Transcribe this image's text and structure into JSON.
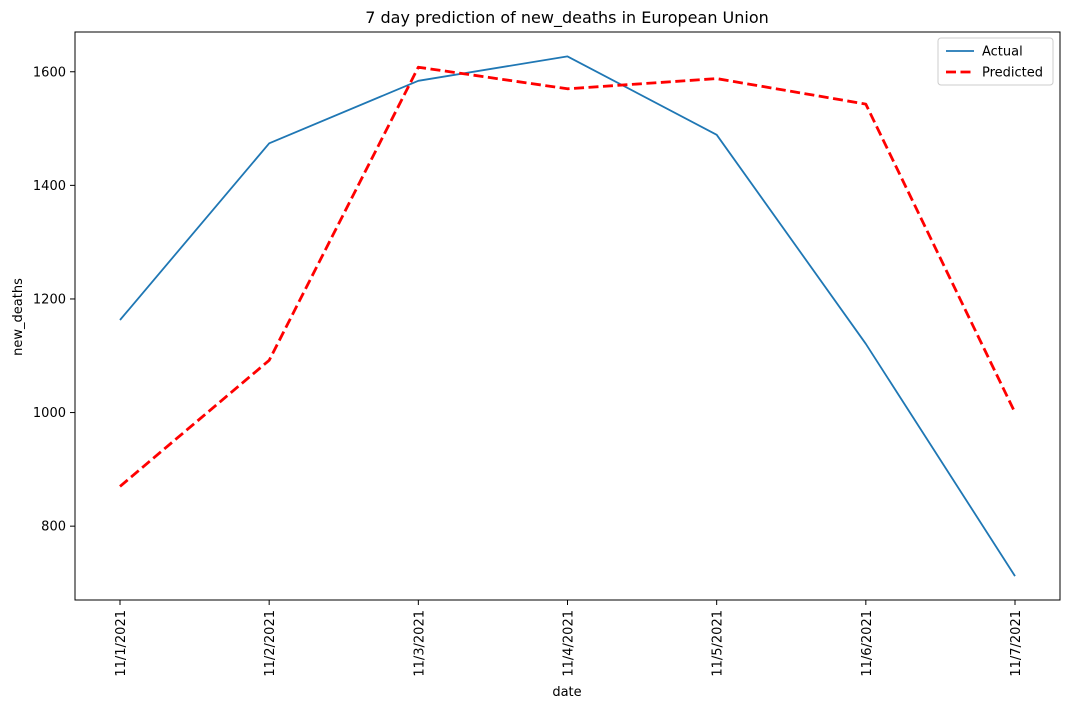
{
  "chart_data": {
    "type": "line",
    "title": "7 day prediction of new_deaths in European Union",
    "xlabel": "date",
    "ylabel": "new_deaths",
    "categories": [
      "11/1/2021",
      "11/2/2021",
      "11/3/2021",
      "11/4/2021",
      "11/5/2021",
      "11/6/2021",
      "11/7/2021"
    ],
    "ylim": [
      670,
      1670
    ],
    "yticks": [
      800,
      1000,
      1200,
      1400,
      1600
    ],
    "grid": false,
    "legend_position": "top-right",
    "series": [
      {
        "name": "Actual",
        "color": "#1f77b4",
        "style": "solid",
        "values": [
          1163,
          1474,
          1584,
          1627,
          1489,
          1121,
          712
        ]
      },
      {
        "name": "Predicted",
        "color": "#ff0000",
        "style": "dashed",
        "values": [
          870,
          1092,
          1608,
          1570,
          1588,
          1543,
          1000
        ]
      }
    ]
  }
}
